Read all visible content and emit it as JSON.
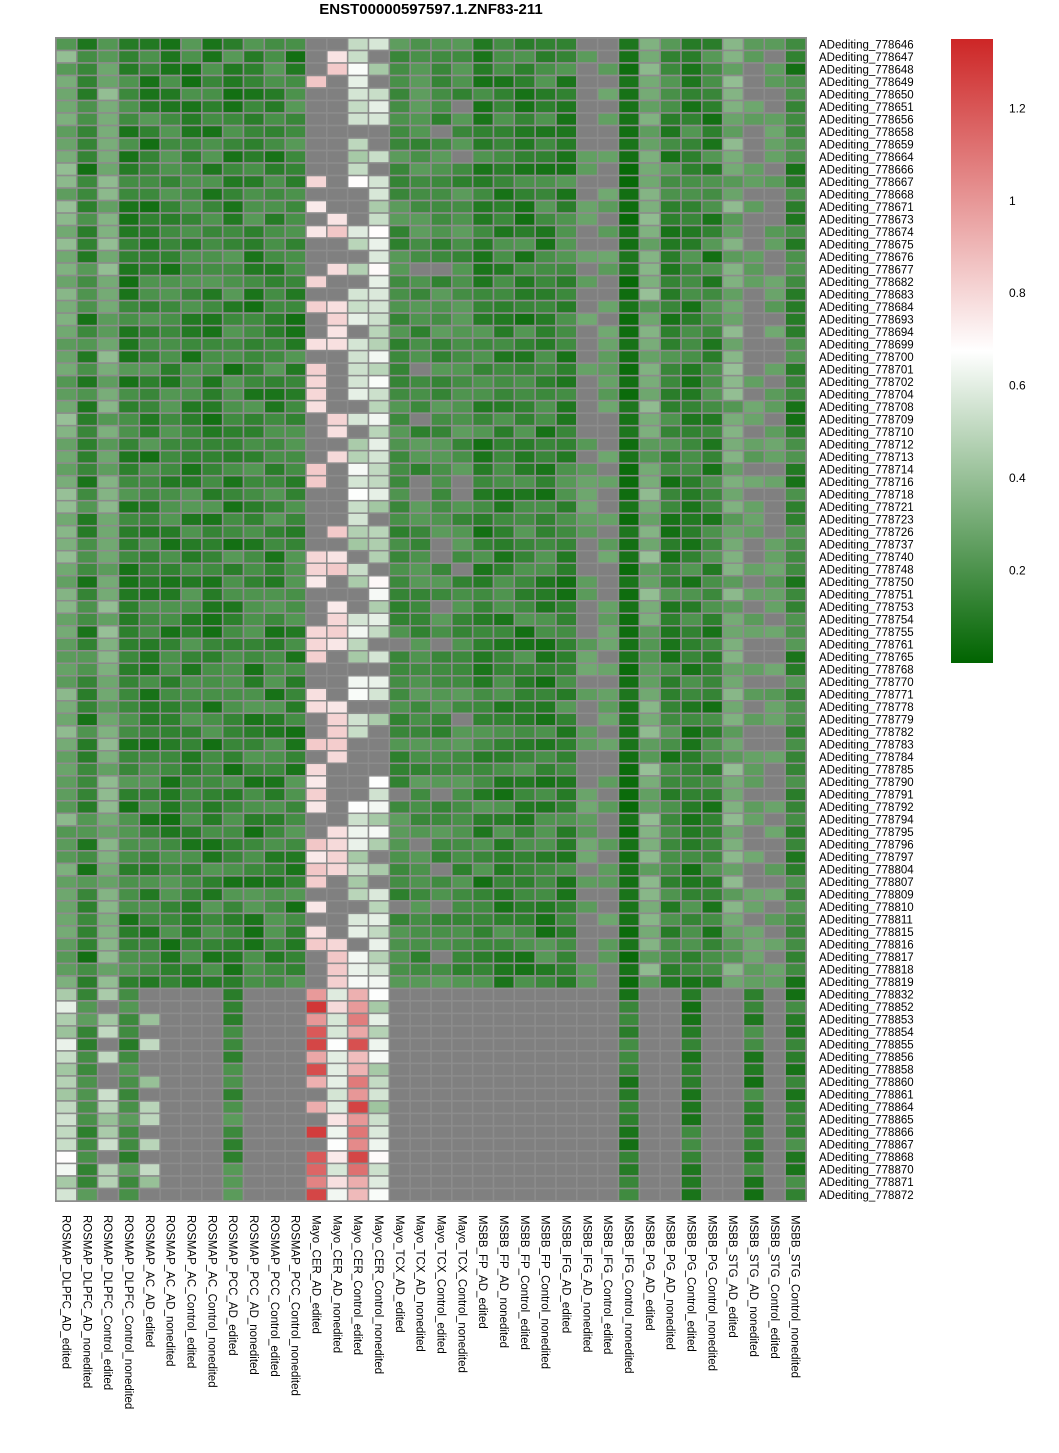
{
  "chart_data": {
    "type": "heatmap",
    "title": "ENST00000597597.1.ZNF83-211",
    "columns": [
      "ROSMAP_DLPFC_AD_edited",
      "ROSMAP_DLPFC_AD_nonedited",
      "ROSMAP_DLPFC_Control_edited",
      "ROSMAP_DLPFC_Control_nonedited",
      "ROSMAP_AC_AD_edited",
      "ROSMAP_AC_AD_nonedited",
      "ROSMAP_AC_Control_edited",
      "ROSMAP_AC_Control_nonedited",
      "ROSMAP_PCC_AD_edited",
      "ROSMAP_PCC_AD_nonedited",
      "ROSMAP_PCC_Control_edited",
      "ROSMAP_PCC_Control_nonedited",
      "Mayo_CER_AD_edited",
      "Mayo_CER_AD_nonedited",
      "Mayo_CER_Control_edited",
      "Mayo_CER_Control_nonedited",
      "Mayo_TCX_AD_edited",
      "Mayo_TCX_AD_nonedited",
      "Mayo_TCX_Control_edited",
      "Mayo_TCX_Control_nonedited",
      "MSBB_FP_AD_edited",
      "MSBB_FP_AD_nonedited",
      "MSBB_FP_Control_edited",
      "MSBB_FP_Control_nonedited",
      "MSBB_IFG_AD_edited",
      "MSBB_IFG_AD_nonedited",
      "MSBB_IFG_Control_edited",
      "MSBB_IFG_Control_nonedited",
      "MSBB_PG_AD_edited",
      "MSBB_PG_AD_nonedited",
      "MSBB_PG_Control_edited",
      "MSBB_PG_Control_nonedited",
      "MSBB_STG_AD_edited",
      "MSBB_STG_AD_nonedited",
      "MSBB_STG_Control_edited",
      "MSBB_STG_Control_nonedited"
    ],
    "rows": [
      "ADediting_778646",
      "ADediting_778647",
      "ADediting_778648",
      "ADediting_778649",
      "ADediting_778650",
      "ADediting_778651",
      "ADediting_778656",
      "ADediting_778658",
      "ADediting_778659",
      "ADediting_778664",
      "ADediting_778666",
      "ADediting_778667",
      "ADediting_778668",
      "ADediting_778671",
      "ADediting_778673",
      "ADediting_778674",
      "ADediting_778675",
      "ADediting_778676",
      "ADediting_778677",
      "ADediting_778682",
      "ADediting_778683",
      "ADediting_778684",
      "ADediting_778693",
      "ADediting_778694",
      "ADediting_778699",
      "ADediting_778700",
      "ADediting_778701",
      "ADediting_778702",
      "ADediting_778704",
      "ADediting_778708",
      "ADediting_778709",
      "ADediting_778710",
      "ADediting_778712",
      "ADediting_778713",
      "ADediting_778714",
      "ADediting_778716",
      "ADediting_778718",
      "ADediting_778721",
      "ADediting_778723",
      "ADediting_778726",
      "ADediting_778737",
      "ADediting_778740",
      "ADediting_778748",
      "ADediting_778750",
      "ADediting_778751",
      "ADediting_778753",
      "ADediting_778754",
      "ADediting_778755",
      "ADediting_778761",
      "ADediting_778765",
      "ADediting_778768",
      "ADediting_778770",
      "ADediting_778771",
      "ADediting_778778",
      "ADediting_778779",
      "ADediting_778782",
      "ADediting_778783",
      "ADediting_778784",
      "ADediting_778785",
      "ADediting_778790",
      "ADediting_778791",
      "ADediting_778792",
      "ADediting_778794",
      "ADediting_778795",
      "ADediting_778796",
      "ADediting_778797",
      "ADediting_778804",
      "ADediting_778807",
      "ADediting_778809",
      "ADediting_778810",
      "ADediting_778811",
      "ADediting_778815",
      "ADediting_778816",
      "ADediting_778817",
      "ADediting_778818",
      "ADediting_778819",
      "ADediting_778832",
      "ADediting_778852",
      "ADediting_778853",
      "ADediting_778854",
      "ADediting_778855",
      "ADediting_778856",
      "ADediting_778858",
      "ADediting_778860",
      "ADediting_778861",
      "ADediting_778864",
      "ADediting_778865",
      "ADediting_778866",
      "ADediting_778867",
      "ADediting_778868",
      "ADediting_778870",
      "ADediting_778871",
      "ADediting_778872"
    ],
    "color_scale": {
      "range": [
        0,
        1.35
      ],
      "stops": [
        {
          "value": 0,
          "color": "#006400"
        },
        {
          "value": 0.675,
          "color": "#ffffff"
        },
        {
          "value": 1.35,
          "color": "#cd2626"
        }
      ],
      "ticks": [
        "0.2",
        "0.4",
        "0.6",
        "0.8",
        "1",
        "1.2"
      ],
      "na_color": "#808080",
      "legend_position": "right"
    },
    "values_note": "Cell values are approximated from the rendered colors; gray cells are missing values.",
    "values": []
  }
}
